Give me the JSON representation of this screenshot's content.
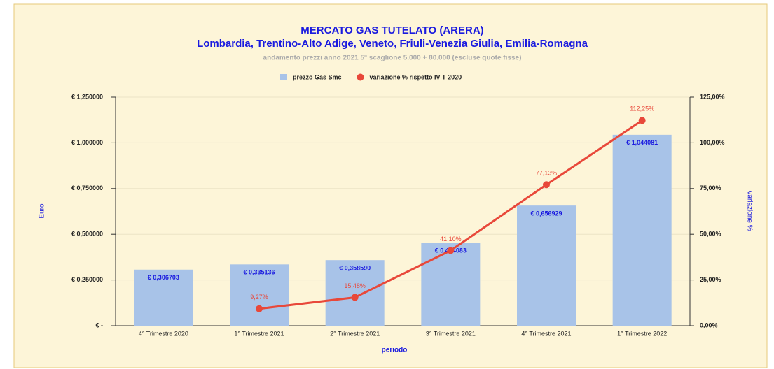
{
  "chart_data": {
    "type": "bar",
    "title": "MERCATO GAS TUTELATO (ARERA)",
    "subtitle": "Lombardia, Trentino-Alto Adige, Veneto, Friuli-Venezia Giulia, Emilia-Romagna",
    "note": "andamento prezzi  anno 2021 5° scaglione 5.000 + 80.000 (escluse quote fisse)",
    "x_label": "periodo",
    "y_label": "Euro",
    "y2_label": "variazione %",
    "categories": [
      "4° Trimestre 2020",
      "1° Trimestre 2021",
      "2° Trimestre 2021",
      "3° Trimestre 2021",
      "4° Trimestre 2021",
      "1° Trimestre 2022"
    ],
    "series": [
      {
        "name": "prezzo Gas Smc",
        "color": "#a8c3e8",
        "type": "bar",
        "values": [
          0.306703,
          0.335136,
          0.35859,
          0.454083,
          0.656929,
          1.044081
        ],
        "value_labels": [
          "€ 0,306703",
          "€ 0,335136",
          "€ 0,358590",
          "€ 0,454083",
          "€ 0,656929",
          "€ 1,044081"
        ]
      },
      {
        "name": "variazione % rispetto IV T 2020",
        "color": "#e8483a",
        "type": "line",
        "axis": "y2",
        "values": [
          null,
          9.27,
          15.48,
          41.1,
          77.13,
          112.25
        ],
        "value_labels": [
          null,
          "9,27%",
          "15,48%",
          "41,10%",
          "77,13%",
          "112,25%"
        ]
      }
    ],
    "ylim": [
      0,
      1.25
    ],
    "yticks": [
      {
        "value": 0,
        "label": "€ -"
      },
      {
        "value": 0.25,
        "label": "€ 0,250000"
      },
      {
        "value": 0.5,
        "label": "€ 0,500000"
      },
      {
        "value": 0.75,
        "label": "€ 0,750000"
      },
      {
        "value": 1,
        "label": "€ 1,000000"
      },
      {
        "value": 1.25,
        "label": "€ 1,250000"
      }
    ],
    "y2lim": [
      0,
      125
    ],
    "y2ticks": [
      {
        "value": 0,
        "label": "0,00%"
      },
      {
        "value": 25,
        "label": "25,00%"
      },
      {
        "value": 50,
        "label": "50,00%"
      },
      {
        "value": 75,
        "label": "75,00%"
      },
      {
        "value": 100,
        "label": "100,00%"
      },
      {
        "value": 125,
        "label": "125,00%"
      }
    ],
    "grid": true
  }
}
